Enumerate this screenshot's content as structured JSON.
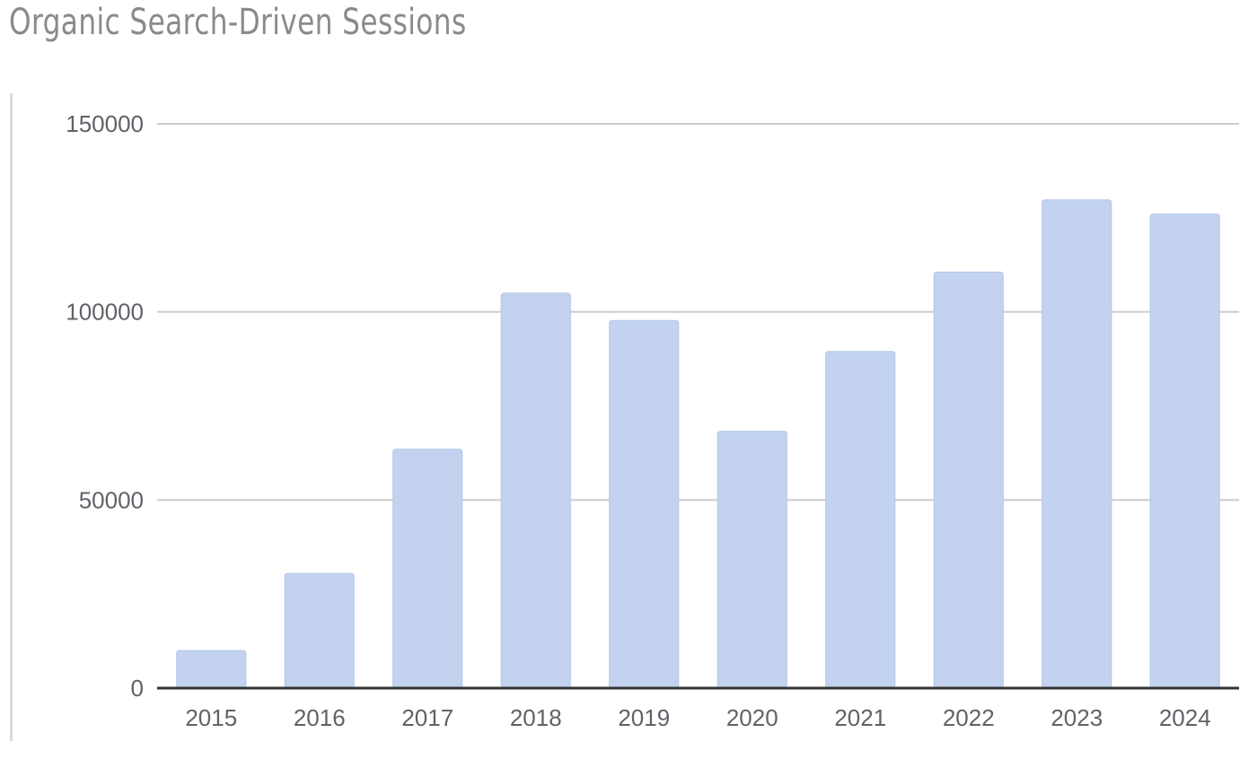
{
  "chart_data": {
    "type": "bar",
    "title": "Organic Search-Driven Sessions",
    "categories": [
      "2015",
      "2016",
      "2017",
      "2018",
      "2019",
      "2020",
      "2021",
      "2022",
      "2023",
      "2024"
    ],
    "values": [
      10000,
      30500,
      63500,
      105000,
      97700,
      68300,
      89500,
      110600,
      129800,
      126000
    ],
    "ylim": [
      0,
      150000
    ],
    "yticks": [
      "0",
      "50000",
      "100000",
      "150000"
    ],
    "grid": true,
    "legend": "none",
    "colors": {
      "bar": "#c3d3ef",
      "bar_edge": "#b3c6ea",
      "grid": "#cccccc",
      "baseline": "#333333",
      "title": "#8a8a8a",
      "tick": "#5f6368"
    }
  }
}
